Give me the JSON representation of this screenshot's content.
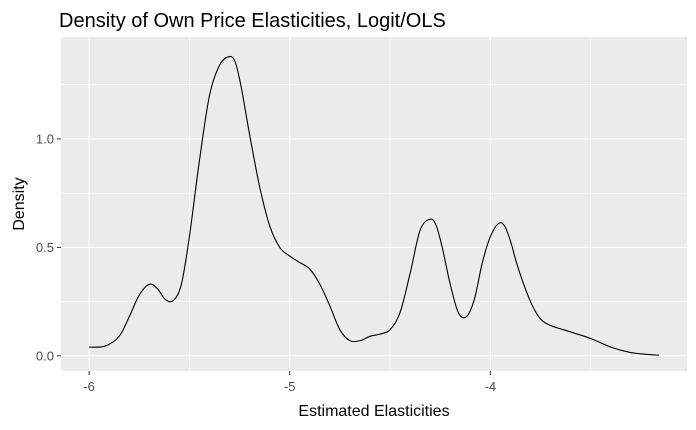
{
  "chart_data": {
    "type": "line",
    "title": "Density of Own Price Elasticities, Logit/OLS",
    "xlabel": "Estimated Elasticities",
    "ylabel": "Density",
    "xlim": [
      -6.14,
      -3.02
    ],
    "ylim": [
      -0.07,
      1.47
    ],
    "x_ticks": [
      {
        "value": -6,
        "label": "-6"
      },
      {
        "value": -5,
        "label": "-5"
      },
      {
        "value": -4,
        "label": "-4"
      }
    ],
    "y_ticks": [
      {
        "value": 0.0,
        "label": "0.0"
      },
      {
        "value": 0.5,
        "label": "0.5"
      },
      {
        "value": 1.0,
        "label": "1.0"
      }
    ],
    "grid": true,
    "colors": {
      "panel": "#ebebeb",
      "grid": "#ffffff",
      "line": "#000000",
      "tick": "#333333"
    },
    "series": [
      {
        "x": [
          -6.0,
          -5.92,
          -5.85,
          -5.8,
          -5.75,
          -5.7,
          -5.66,
          -5.62,
          -5.58,
          -5.54,
          -5.5,
          -5.45,
          -5.4,
          -5.35,
          -5.3,
          -5.27,
          -5.24,
          -5.2,
          -5.15,
          -5.1,
          -5.05,
          -5.0,
          -4.95,
          -4.9,
          -4.85,
          -4.8,
          -4.75,
          -4.7,
          -4.65,
          -4.6,
          -4.55,
          -4.5,
          -4.45,
          -4.4,
          -4.35,
          -4.3,
          -4.27,
          -4.24,
          -4.2,
          -4.16,
          -4.12,
          -4.08,
          -4.04,
          -4.0,
          -3.96,
          -3.93,
          -3.9,
          -3.87,
          -3.83,
          -3.79,
          -3.75,
          -3.7,
          -3.6,
          -3.5,
          -3.4,
          -3.3,
          -3.2,
          -3.16
        ],
        "y": [
          0.04,
          0.045,
          0.09,
          0.18,
          0.28,
          0.33,
          0.31,
          0.26,
          0.255,
          0.33,
          0.55,
          0.9,
          1.2,
          1.34,
          1.38,
          1.35,
          1.23,
          1.02,
          0.78,
          0.6,
          0.5,
          0.46,
          0.43,
          0.4,
          0.33,
          0.23,
          0.12,
          0.07,
          0.07,
          0.09,
          0.1,
          0.12,
          0.2,
          0.38,
          0.58,
          0.63,
          0.6,
          0.5,
          0.33,
          0.2,
          0.18,
          0.26,
          0.43,
          0.55,
          0.61,
          0.6,
          0.53,
          0.43,
          0.32,
          0.23,
          0.17,
          0.14,
          0.11,
          0.08,
          0.04,
          0.015,
          0.005,
          0.003
        ]
      }
    ]
  }
}
